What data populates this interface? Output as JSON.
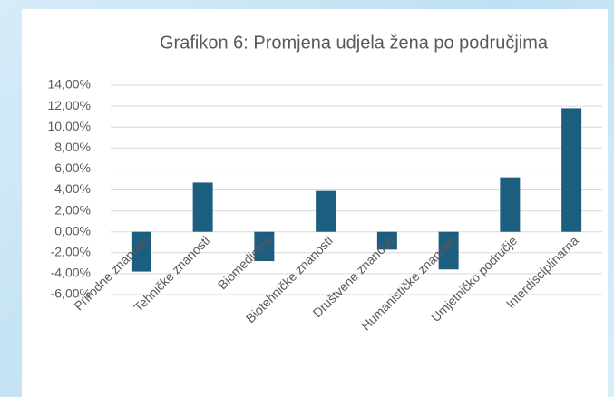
{
  "chart_data": {
    "type": "bar",
    "title": "Grafikon 6: Promjena udjela žena po područjima",
    "categories": [
      "Prirodne znanosti",
      "Tehničke znanosti",
      "Biomedicina",
      "Biotehničke znanosti",
      "Društvene znanosti",
      "Humanističke znanosti",
      "Umjetničko područje",
      "Interdisciplinarna"
    ],
    "values": [
      -3.8,
      4.7,
      -2.8,
      3.9,
      -1.7,
      -3.6,
      5.2,
      11.8
    ],
    "color": "#1b5e80",
    "ylim": [
      -6,
      14
    ],
    "yticks": [
      {
        "value": -6,
        "label": "-6,00%"
      },
      {
        "value": -4,
        "label": "-4,00%"
      },
      {
        "value": -2,
        "label": "-2,00%"
      },
      {
        "value": 0,
        "label": "0,00%"
      },
      {
        "value": 2,
        "label": "2,00%"
      },
      {
        "value": 4,
        "label": "4,00%"
      },
      {
        "value": 6,
        "label": "6,00%"
      },
      {
        "value": 8,
        "label": "8,00%"
      },
      {
        "value": 10,
        "label": "10,00%"
      },
      {
        "value": 12,
        "label": "12,00%"
      },
      {
        "value": 14,
        "label": "14,00%"
      }
    ],
    "grid": true
  }
}
